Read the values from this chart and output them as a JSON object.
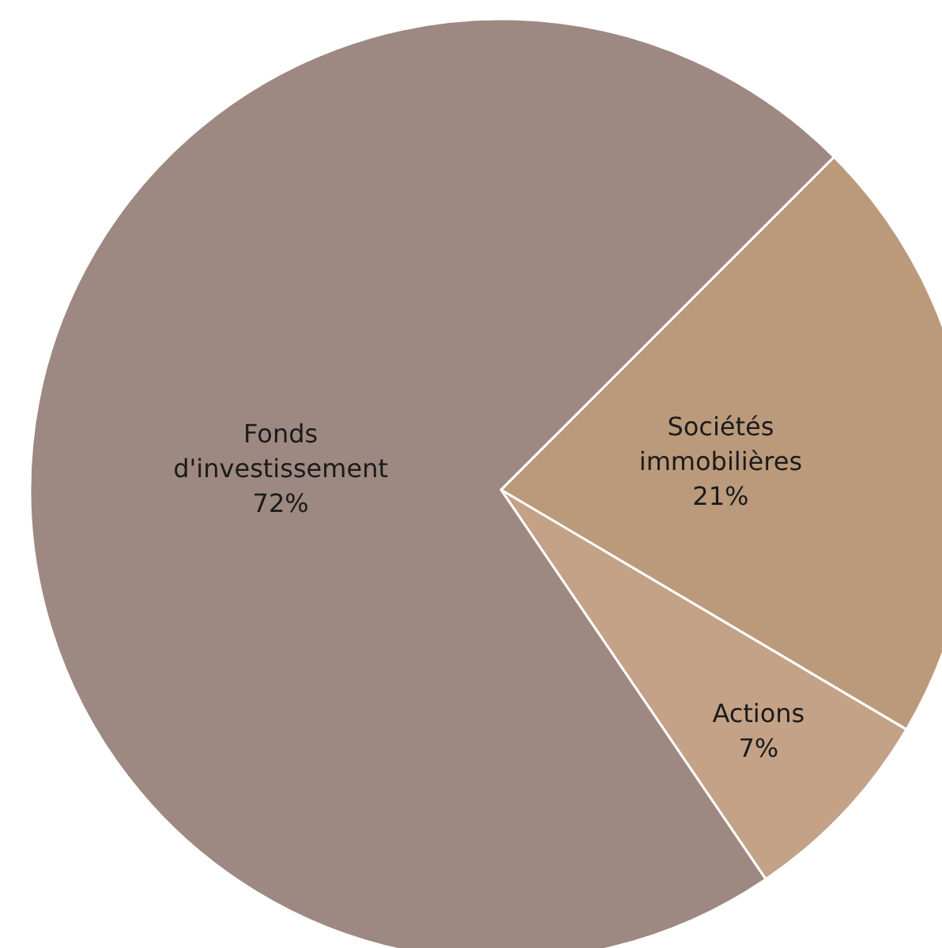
{
  "chart_data": {
    "type": "pie",
    "categories": [
      "Sociétés immobilières",
      "Actions",
      "Fonds d'investissement"
    ],
    "values": [
      21,
      7,
      72
    ],
    "colors": [
      "#bb9a7c",
      "#c4a287",
      "#9e8882"
    ],
    "value_labels": [
      "21%",
      "7%",
      "72%"
    ],
    "legend": false
  }
}
